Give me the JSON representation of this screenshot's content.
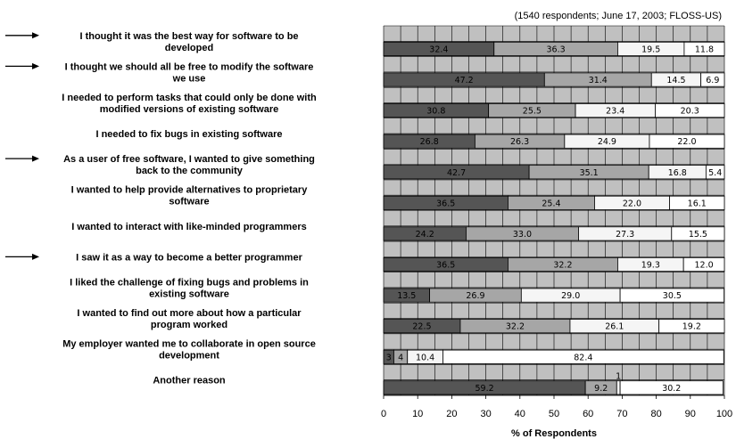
{
  "chart_data": {
    "type": "bar",
    "orientation": "horizontal",
    "stacked": true,
    "subtitle": "(1540 respondents; June 17, 2003; FLOSS-US)",
    "xlabel": "% of Respondents",
    "ylabel": "",
    "xlim": [
      0,
      100
    ],
    "xticks": [
      "0",
      "10",
      "20",
      "30",
      "40",
      "50",
      "60",
      "70",
      "80",
      "90",
      "100"
    ],
    "grid": true,
    "legend": "none",
    "colors": {
      "plot_bg": "#c0c0c0",
      "grid": "#000000",
      "segments": [
        "#555555",
        "#a6a6a6",
        "#f5f5f5",
        "#ffffff"
      ]
    },
    "categories": [
      "I thought it was the best way for software to be developed",
      "I thought we should all be free to modify the software we use",
      "I needed to perform tasks that could only be done with modified versions of existing software",
      "I needed to fix bugs in existing software",
      "As a user of free software, I wanted to give something back to the community",
      "I wanted to help provide alternatives to proprietary software",
      "I wanted to interact with like-minded programmers",
      "I saw it as a way to become a better programmer",
      "I liked the challenge of fixing bugs and problems in existing software",
      "I wanted to find out more about how a particular program worked",
      "My employer wanted me to collaborate in open source development",
      "Another reason"
    ],
    "label_lines": [
      [
        "I thought it was the best way for software to be",
        "developed"
      ],
      [
        "I thought we should all be free to modify the software",
        "we use"
      ],
      [
        "I needed to perform tasks that could only be done with",
        "modified versions of existing software"
      ],
      [
        "I needed to fix bugs in existing software"
      ],
      [
        "As a user of free software, I wanted to give something",
        "back to the community"
      ],
      [
        "I wanted to help provide alternatives to proprietary",
        "software"
      ],
      [
        "I wanted to interact with like-minded programmers"
      ],
      [
        "I saw it as a way to become a better programmer"
      ],
      [
        "I liked the challenge of fixing bugs and problems in",
        "existing software"
      ],
      [
        "I wanted to find out more about how a particular",
        "program worked"
      ],
      [
        "My employer wanted me to collaborate in open source",
        "development"
      ],
      [
        "Another reason"
      ]
    ],
    "arrows": [
      0,
      1,
      4,
      7
    ],
    "segments": [
      [
        32.4,
        36.3,
        19.5,
        11.8
      ],
      [
        47.2,
        31.4,
        14.5,
        6.9
      ],
      [
        30.8,
        25.5,
        23.4,
        20.3
      ],
      [
        26.8,
        26.3,
        24.9,
        22.0
      ],
      [
        42.7,
        35.1,
        16.8,
        5.4
      ],
      [
        36.5,
        25.4,
        22.0,
        16.1
      ],
      [
        24.2,
        33.0,
        27.3,
        15.5
      ],
      [
        36.5,
        32.2,
        19.3,
        12.0
      ],
      [
        13.5,
        26.9,
        29.0,
        30.5
      ],
      [
        22.5,
        32.2,
        26.1,
        19.2
      ],
      [
        3,
        4,
        10.4,
        82.4
      ],
      [
        59.2,
        9.2,
        1,
        30.2
      ]
    ],
    "segment_labels": [
      [
        "32.4",
        "36.3",
        "19.5",
        "11.8"
      ],
      [
        "47.2",
        "31.4",
        "14.5",
        "6.9"
      ],
      [
        "30.8",
        "25.5",
        "23.4",
        "20.3"
      ],
      [
        "26.8",
        "26.3",
        "24.9",
        "22.0"
      ],
      [
        "42.7",
        "35.1",
        "16.8",
        "5.4"
      ],
      [
        "36.5",
        "25.4",
        "22.0",
        "16.1"
      ],
      [
        "24.2",
        "33.0",
        "27.3",
        "15.5"
      ],
      [
        "36.5",
        "32.2",
        "19.3",
        "12.0"
      ],
      [
        "13.5",
        "26.9",
        "29.0",
        "30.5"
      ],
      [
        "22.5",
        "32.2",
        "26.1",
        "19.2"
      ],
      [
        "3",
        "4",
        "10.4",
        "82.4"
      ],
      [
        "59.2",
        "9.2",
        "1",
        "30.2"
      ]
    ]
  }
}
